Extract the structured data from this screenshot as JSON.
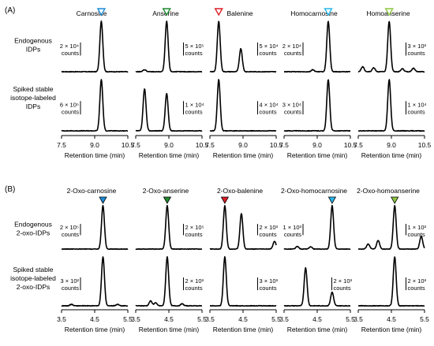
{
  "panel_a": {
    "label": "(A)",
    "row_labels": [
      [
        "Endogenous",
        "IDPs"
      ],
      [
        "Spiked stable",
        "isotope-labeled",
        "IDPs"
      ]
    ],
    "x_ticks": [
      "7.5",
      "9.0",
      "10.5"
    ],
    "xlabel": "Retention time (min)"
  },
  "panel_b": {
    "label": "(B)",
    "row_labels": [
      [
        "Endogenous",
        "2-oxo-IDPs"
      ],
      [
        "Spiked stable",
        "isotope-labeled",
        "2-oxo-IDPs"
      ]
    ],
    "x_ticks": [
      "3.5",
      "4.5",
      "5.5"
    ],
    "xlabel": "Retention time (min)"
  },
  "counts_word": "counts",
  "colors": {
    "carnosine": "#1a8cd8",
    "anserine": "#1f8a2e",
    "balenine": "#d81f26",
    "homocarnosine": "#29b6e8",
    "homoanserine": "#8cc63f"
  },
  "chart_data": [
    {
      "type": "line",
      "panel": "A",
      "title": "Carnosine",
      "marker": "open-triangle",
      "color": "#1a8cd8",
      "xlim": [
        7.5,
        10.5
      ],
      "series": [
        {
          "row": "Endogenous IDPs",
          "scale": "2 × 10⁴",
          "peaks": [
            [
              9.3,
              1.0
            ]
          ]
        },
        {
          "row": "Spiked stable isotope-labeled IDPs",
          "scale": "6 × 10⁵",
          "peaks": [
            [
              9.3,
              1.0
            ]
          ]
        }
      ]
    },
    {
      "type": "line",
      "panel": "A",
      "title": "Anserine",
      "marker": "open-triangle",
      "color": "#1f8a2e",
      "xlim": [
        7.5,
        10.5
      ],
      "series": [
        {
          "row": "Endogenous IDPs",
          "scale": "5 × 10⁵",
          "peaks": [
            [
              8.9,
              1.0
            ],
            [
              7.9,
              0.04
            ]
          ]
        },
        {
          "row": "Spiked stable isotope-labeled IDPs",
          "scale": "1 × 10⁴",
          "peaks": [
            [
              7.9,
              0.82
            ],
            [
              8.9,
              0.73
            ]
          ]
        }
      ]
    },
    {
      "type": "line",
      "panel": "A",
      "title": "Balenine",
      "marker": "open-triangle",
      "color": "#d81f26",
      "xlim": [
        7.5,
        10.5
      ],
      "series": [
        {
          "row": "Endogenous IDPs",
          "scale": "5 × 10⁴",
          "peaks": [
            [
              7.9,
              1.0
            ],
            [
              8.9,
              0.46
            ]
          ]
        },
        {
          "row": "Spiked stable isotope-labeled IDPs",
          "scale": "4 × 10⁴",
          "peaks": [
            [
              7.9,
              1.0
            ]
          ]
        }
      ]
    },
    {
      "type": "line",
      "panel": "A",
      "title": "Homocarnosine",
      "marker": "open-triangle",
      "color": "#29b6e8",
      "xlim": [
        7.5,
        10.5
      ],
      "series": [
        {
          "row": "Endogenous IDPs",
          "scale": "2 × 10⁴",
          "peaks": [
            [
              9.5,
              1.0
            ],
            [
              8.8,
              0.04
            ]
          ]
        },
        {
          "row": "Spiked stable isotope-labeled IDPs",
          "scale": "3 × 10⁴",
          "peaks": [
            [
              9.5,
              1.0
            ]
          ]
        }
      ]
    },
    {
      "type": "line",
      "panel": "A",
      "title": "Homoanserine",
      "marker": "open-triangle",
      "color": "#8cc63f",
      "xlim": [
        7.5,
        10.5
      ],
      "series": [
        {
          "row": "Endogenous IDPs",
          "scale": "3 × 10³",
          "peaks": [
            [
              8.9,
              1.0
            ],
            [
              7.7,
              0.1
            ],
            [
              8.2,
              0.08
            ],
            [
              9.5,
              0.06
            ],
            [
              10.0,
              0.07
            ]
          ]
        },
        {
          "row": "Spiked stable isotope-labeled IDPs",
          "scale": "1 × 10⁴",
          "peaks": [
            [
              8.9,
              1.0
            ]
          ]
        }
      ]
    },
    {
      "type": "line",
      "panel": "B",
      "title": "2-Oxo-carnosine",
      "marker": "filled-triangle",
      "color": "#1a8cd8",
      "xlim": [
        3.5,
        5.5
      ],
      "series": [
        {
          "row": "Endogenous 2-oxo-IDPs",
          "scale": "2 × 10⁵",
          "peaks": [
            [
              4.75,
              1.0
            ]
          ]
        },
        {
          "row": "Spiked stable isotope-labeled 2-oxo-IDPs",
          "scale": "3 × 10²",
          "peaks": [
            [
              4.75,
              1.0
            ],
            [
              3.8,
              0.03
            ],
            [
              5.2,
              0.03
            ]
          ]
        }
      ]
    },
    {
      "type": "line",
      "panel": "B",
      "title": "2-Oxo-anserine",
      "marker": "filled-triangle",
      "color": "#1f8a2e",
      "xlim": [
        3.5,
        5.5
      ],
      "series": [
        {
          "row": "Endogenous 2-oxo-IDPs",
          "scale": "2 × 10⁵",
          "peaks": [
            [
              4.45,
              1.0
            ]
          ]
        },
        {
          "row": "Spiked stable isotope-labeled 2-oxo-IDPs",
          "scale": "2 × 10³",
          "peaks": [
            [
              4.45,
              1.0
            ],
            [
              3.95,
              0.1
            ],
            [
              4.1,
              0.06
            ],
            [
              4.9,
              0.04
            ]
          ]
        }
      ]
    },
    {
      "type": "line",
      "panel": "B",
      "title": "2-Oxo-balenine",
      "marker": "filled-triangle",
      "color": "#d81f26",
      "xlim": [
        3.5,
        5.5
      ],
      "series": [
        {
          "row": "Endogenous 2-oxo-IDPs",
          "scale": "2 × 10³",
          "peaks": [
            [
              3.95,
              1.0
            ],
            [
              4.45,
              0.82
            ],
            [
              5.45,
              0.18
            ]
          ]
        },
        {
          "row": "Spiked stable isotope-labeled 2-oxo-IDPs",
          "scale": "3 × 10³",
          "peaks": [
            [
              3.95,
              1.0
            ]
          ]
        }
      ]
    },
    {
      "type": "line",
      "panel": "B",
      "title": "2-Oxo-homocarnosine",
      "marker": "filled-triangle",
      "color": "#29b6e8",
      "xlim": [
        3.5,
        5.5
      ],
      "series": [
        {
          "row": "Endogenous 2-oxo-IDPs",
          "scale": "1 × 10³",
          "peaks": [
            [
              4.95,
              1.0
            ],
            [
              3.9,
              0.06
            ],
            [
              4.3,
              0.05
            ]
          ]
        },
        {
          "row": "Spiked stable isotope-labeled 2-oxo-IDPs",
          "scale": "2 × 10³",
          "peaks": [
            [
              4.15,
              0.78
            ],
            [
              4.95,
              0.28
            ]
          ]
        }
      ]
    },
    {
      "type": "line",
      "panel": "B",
      "title": "2-Oxo-homoanserine",
      "marker": "filled-triangle",
      "color": "#8cc63f",
      "xlim": [
        3.5,
        5.5
      ],
      "series": [
        {
          "row": "Endogenous 2-oxo-IDPs",
          "scale": "1 × 10³",
          "peaks": [
            [
              4.6,
              1.0
            ],
            [
              3.8,
              0.12
            ],
            [
              4.1,
              0.2
            ],
            [
              5.4,
              0.3
            ]
          ]
        },
        {
          "row": "Spiked stable isotope-labeled 2-oxo-IDPs",
          "scale": "2 × 10³",
          "peaks": [
            [
              4.6,
              1.0
            ]
          ]
        }
      ]
    }
  ]
}
